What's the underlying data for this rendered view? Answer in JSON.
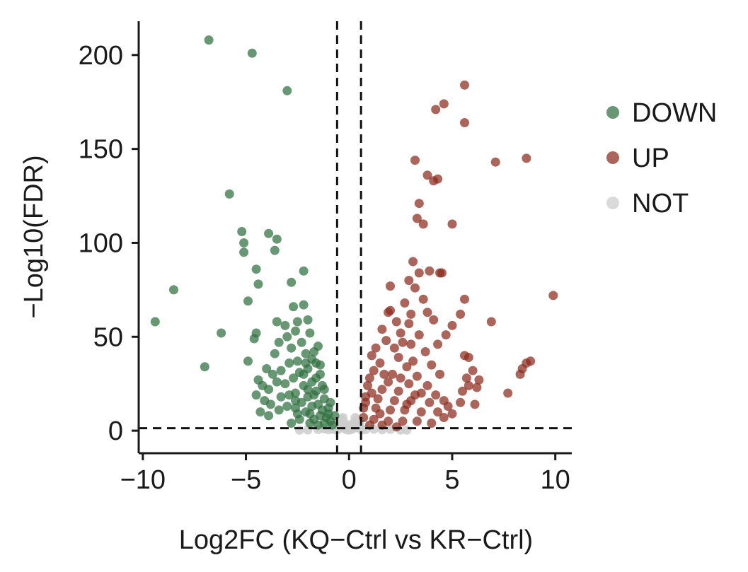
{
  "chart_data": {
    "type": "scatter",
    "title": "",
    "xlabel": "Log2FC (KQ−Ctrl vs KR−Ctrl)",
    "ylabel": "−Log10(FDR)",
    "xlim": [
      -10.2,
      10.8
    ],
    "ylim": [
      -12,
      218
    ],
    "x_ticks": [
      -10,
      -5,
      0,
      5,
      10
    ],
    "x_tick_labels": [
      "−10",
      "−5",
      "0",
      "5",
      "10"
    ],
    "y_ticks": [
      0,
      50,
      100,
      150,
      200
    ],
    "y_tick_labels": [
      "0",
      "50",
      "100",
      "150",
      "200"
    ],
    "grid": false,
    "legend_position": "right",
    "thresholds": {
      "log2fc": [
        -0.58,
        0.58
      ],
      "neg_log10_fdr": 1.3
    },
    "series": [
      {
        "name": "DOWN",
        "color": "#2e6f3e",
        "points": [
          [
            -6.8,
            208
          ],
          [
            -4.7,
            201
          ],
          [
            -3.0,
            181
          ],
          [
            -5.8,
            126
          ],
          [
            -5.2,
            106
          ],
          [
            -5.1,
            100
          ],
          [
            -5.1,
            95
          ],
          [
            -3.9,
            105
          ],
          [
            -3.5,
            102
          ],
          [
            -3.6,
            96
          ],
          [
            -4.5,
            86
          ],
          [
            -2.2,
            85
          ],
          [
            -4.4,
            78
          ],
          [
            -2.8,
            79
          ],
          [
            -8.5,
            75
          ],
          [
            -9.4,
            58
          ],
          [
            -6.2,
            52
          ],
          [
            -7.0,
            34
          ],
          [
            -4.9,
            69
          ],
          [
            -2.2,
            67
          ],
          [
            -2.7,
            66
          ],
          [
            -4.5,
            52
          ],
          [
            -4.6,
            49
          ],
          [
            -4.9,
            37
          ],
          [
            -3.5,
            58
          ],
          [
            -3.1,
            56
          ],
          [
            -2.5,
            58
          ],
          [
            -2.0,
            59
          ],
          [
            -1.9,
            52
          ],
          [
            -2.6,
            53
          ],
          [
            -3.0,
            50
          ],
          [
            -3.4,
            47
          ],
          [
            -2.3,
            47
          ],
          [
            -1.7,
            42
          ],
          [
            -2.8,
            44
          ],
          [
            -3.6,
            41
          ],
          [
            -2.1,
            41
          ],
          [
            -4.0,
            33
          ],
          [
            -3.7,
            30
          ],
          [
            -3.3,
            32
          ],
          [
            -2.9,
            36
          ],
          [
            -2.5,
            37
          ],
          [
            -1.6,
            36
          ],
          [
            -4.4,
            27
          ],
          [
            -4.2,
            24
          ],
          [
            -3.9,
            22
          ],
          [
            -3.5,
            26
          ],
          [
            -3.1,
            25
          ],
          [
            -2.7,
            28
          ],
          [
            -2.4,
            31
          ],
          [
            -2.0,
            33
          ],
          [
            -1.4,
            30
          ],
          [
            -4.5,
            19
          ],
          [
            -4.1,
            16
          ],
          [
            -3.8,
            14
          ],
          [
            -3.3,
            18
          ],
          [
            -2.9,
            19
          ],
          [
            -2.6,
            20
          ],
          [
            -2.2,
            24
          ],
          [
            -1.8,
            26
          ],
          [
            -1.3,
            24
          ],
          [
            -4.3,
            10
          ],
          [
            -3.9,
            8
          ],
          [
            -3.4,
            11
          ],
          [
            -3.0,
            13
          ],
          [
            -2.6,
            12
          ],
          [
            -2.3,
            15
          ],
          [
            -2.0,
            18
          ],
          [
            -1.7,
            19
          ],
          [
            -1.2,
            17
          ],
          [
            -1.0,
            12
          ],
          [
            -2.1,
            10
          ],
          [
            -1.8,
            13
          ],
          [
            -1.5,
            14
          ],
          [
            -1.6,
            21
          ],
          [
            -1.9,
            9
          ],
          [
            -1.4,
            8
          ],
          [
            -1.1,
            7
          ],
          [
            -0.9,
            5
          ],
          [
            -2.4,
            6
          ],
          [
            -1.9,
            4
          ],
          [
            -1.5,
            3
          ],
          [
            -1.2,
            4
          ],
          [
            -0.8,
            3
          ],
          [
            -0.7,
            8
          ],
          [
            -2.8,
            4
          ],
          [
            -2.5,
            9
          ],
          [
            -1.7,
            6
          ],
          [
            -1.3,
            11
          ],
          [
            -1.0,
            9
          ],
          [
            -2.2,
            30
          ],
          [
            -1.6,
            28
          ],
          [
            -2.0,
            22
          ],
          [
            -1.2,
            22
          ],
          [
            -0.9,
            15
          ],
          [
            -1.5,
            45
          ],
          [
            -2.6,
            16
          ],
          [
            -1.8,
            38
          ],
          [
            -1.4,
            35
          ],
          [
            -2.1,
            36
          ]
        ]
      },
      {
        "name": "UP",
        "color": "#8c2a1c",
        "points": [
          [
            5.6,
            184
          ],
          [
            4.2,
            171
          ],
          [
            4.6,
            174
          ],
          [
            5.6,
            164
          ],
          [
            7.1,
            143
          ],
          [
            8.6,
            145
          ],
          [
            3.2,
            144
          ],
          [
            3.8,
            136
          ],
          [
            4.1,
            133
          ],
          [
            4.3,
            134
          ],
          [
            3.4,
            121
          ],
          [
            3.3,
            113
          ],
          [
            3.6,
            110
          ],
          [
            5.0,
            110
          ],
          [
            3.1,
            90
          ],
          [
            3.4,
            84
          ],
          [
            3.9,
            85
          ],
          [
            4.4,
            84
          ],
          [
            4.5,
            84
          ],
          [
            2.0,
            77
          ],
          [
            2.9,
            80
          ],
          [
            3.2,
            76
          ],
          [
            9.9,
            72
          ],
          [
            2.7,
            68
          ],
          [
            3.6,
            70
          ],
          [
            5.6,
            70
          ],
          [
            2.0,
            64
          ],
          [
            1.9,
            63
          ],
          [
            3.0,
            62
          ],
          [
            3.8,
            63
          ],
          [
            5.4,
            62
          ],
          [
            2.3,
            58
          ],
          [
            2.9,
            57
          ],
          [
            4.1,
            59
          ],
          [
            5.0,
            56
          ],
          [
            6.9,
            58
          ],
          [
            1.6,
            54
          ],
          [
            2.5,
            52
          ],
          [
            3.4,
            51
          ],
          [
            4.7,
            51
          ],
          [
            1.8,
            48
          ],
          [
            2.6,
            47
          ],
          [
            3.0,
            46
          ],
          [
            4.3,
            46
          ],
          [
            5.6,
            40
          ],
          [
            5.8,
            39
          ],
          [
            8.4,
            33
          ],
          [
            8.6,
            36
          ],
          [
            8.8,
            37
          ],
          [
            1.3,
            44
          ],
          [
            2.2,
            44
          ],
          [
            3.7,
            42
          ],
          [
            1.1,
            40
          ],
          [
            2.4,
            39
          ],
          [
            3.1,
            37
          ],
          [
            4.0,
            35
          ],
          [
            1.5,
            36
          ],
          [
            2.8,
            34
          ],
          [
            4.4,
            30
          ],
          [
            6.0,
            32
          ],
          [
            8.3,
            30
          ],
          [
            1.2,
            32
          ],
          [
            2.1,
            30
          ],
          [
            3.3,
            29
          ],
          [
            5.7,
            28
          ],
          [
            6.3,
            27
          ],
          [
            1.0,
            28
          ],
          [
            1.9,
            26
          ],
          [
            2.9,
            25
          ],
          [
            3.8,
            24
          ],
          [
            5.8,
            24
          ],
          [
            6.2,
            23
          ],
          [
            0.9,
            24
          ],
          [
            1.6,
            22
          ],
          [
            2.4,
            21
          ],
          [
            3.5,
            20
          ],
          [
            4.2,
            19
          ],
          [
            5.5,
            21
          ],
          [
            7.7,
            20
          ],
          [
            0.8,
            18
          ],
          [
            1.4,
            17
          ],
          [
            2.2,
            16
          ],
          [
            3.0,
            16
          ],
          [
            3.9,
            15
          ],
          [
            4.6,
            16
          ],
          [
            5.4,
            15
          ],
          [
            6.1,
            14
          ],
          [
            0.7,
            12
          ],
          [
            1.3,
            12
          ],
          [
            2.0,
            11
          ],
          [
            2.7,
            11
          ],
          [
            3.5,
            10
          ],
          [
            4.3,
            10
          ],
          [
            5.0,
            9
          ],
          [
            0.7,
            7
          ],
          [
            1.2,
            6
          ],
          [
            1.9,
            5
          ],
          [
            2.6,
            5
          ],
          [
            3.3,
            5
          ],
          [
            4.0,
            4
          ],
          [
            4.6,
            7
          ],
          [
            1.0,
            3
          ],
          [
            1.6,
            3
          ],
          [
            2.3,
            2
          ],
          [
            0.8,
            15
          ],
          [
            1.1,
            20
          ],
          [
            1.7,
            30
          ],
          [
            2.5,
            28
          ],
          [
            3.2,
            19
          ],
          [
            1.5,
            9
          ],
          [
            2.8,
            14
          ],
          [
            4.8,
            13
          ]
        ]
      },
      {
        "name": "NOT",
        "color": "#cccccc",
        "points": [
          [
            -0.5,
            1
          ],
          [
            -0.4,
            3
          ],
          [
            -0.3,
            2
          ],
          [
            -0.2,
            1
          ],
          [
            -0.1,
            0.5
          ],
          [
            0.0,
            0.3
          ],
          [
            0.1,
            0.6
          ],
          [
            0.2,
            1.2
          ],
          [
            0.3,
            2.4
          ],
          [
            0.4,
            1.6
          ],
          [
            0.5,
            3.5
          ],
          [
            -0.5,
            5
          ],
          [
            -0.4,
            6
          ],
          [
            0.4,
            6
          ],
          [
            0.5,
            5
          ],
          [
            -1.0,
            0.5
          ],
          [
            -1.5,
            0.6
          ],
          [
            -2.0,
            0.4
          ],
          [
            -1.2,
            1.0
          ],
          [
            -0.8,
            0.8
          ],
          [
            0.8,
            0.6
          ],
          [
            1.2,
            0.8
          ],
          [
            1.6,
            0.5
          ],
          [
            2.0,
            0.7
          ],
          [
            2.5,
            0.4
          ],
          [
            -0.2,
            4
          ],
          [
            0.2,
            4
          ],
          [
            -0.3,
            7
          ],
          [
            0.3,
            7
          ],
          [
            -0.1,
            2.5
          ],
          [
            0.1,
            3
          ],
          [
            -0.6,
            0.3
          ],
          [
            0.6,
            0.4
          ],
          [
            -2.4,
            0.3
          ],
          [
            2.8,
            0.3
          ]
        ]
      }
    ]
  }
}
